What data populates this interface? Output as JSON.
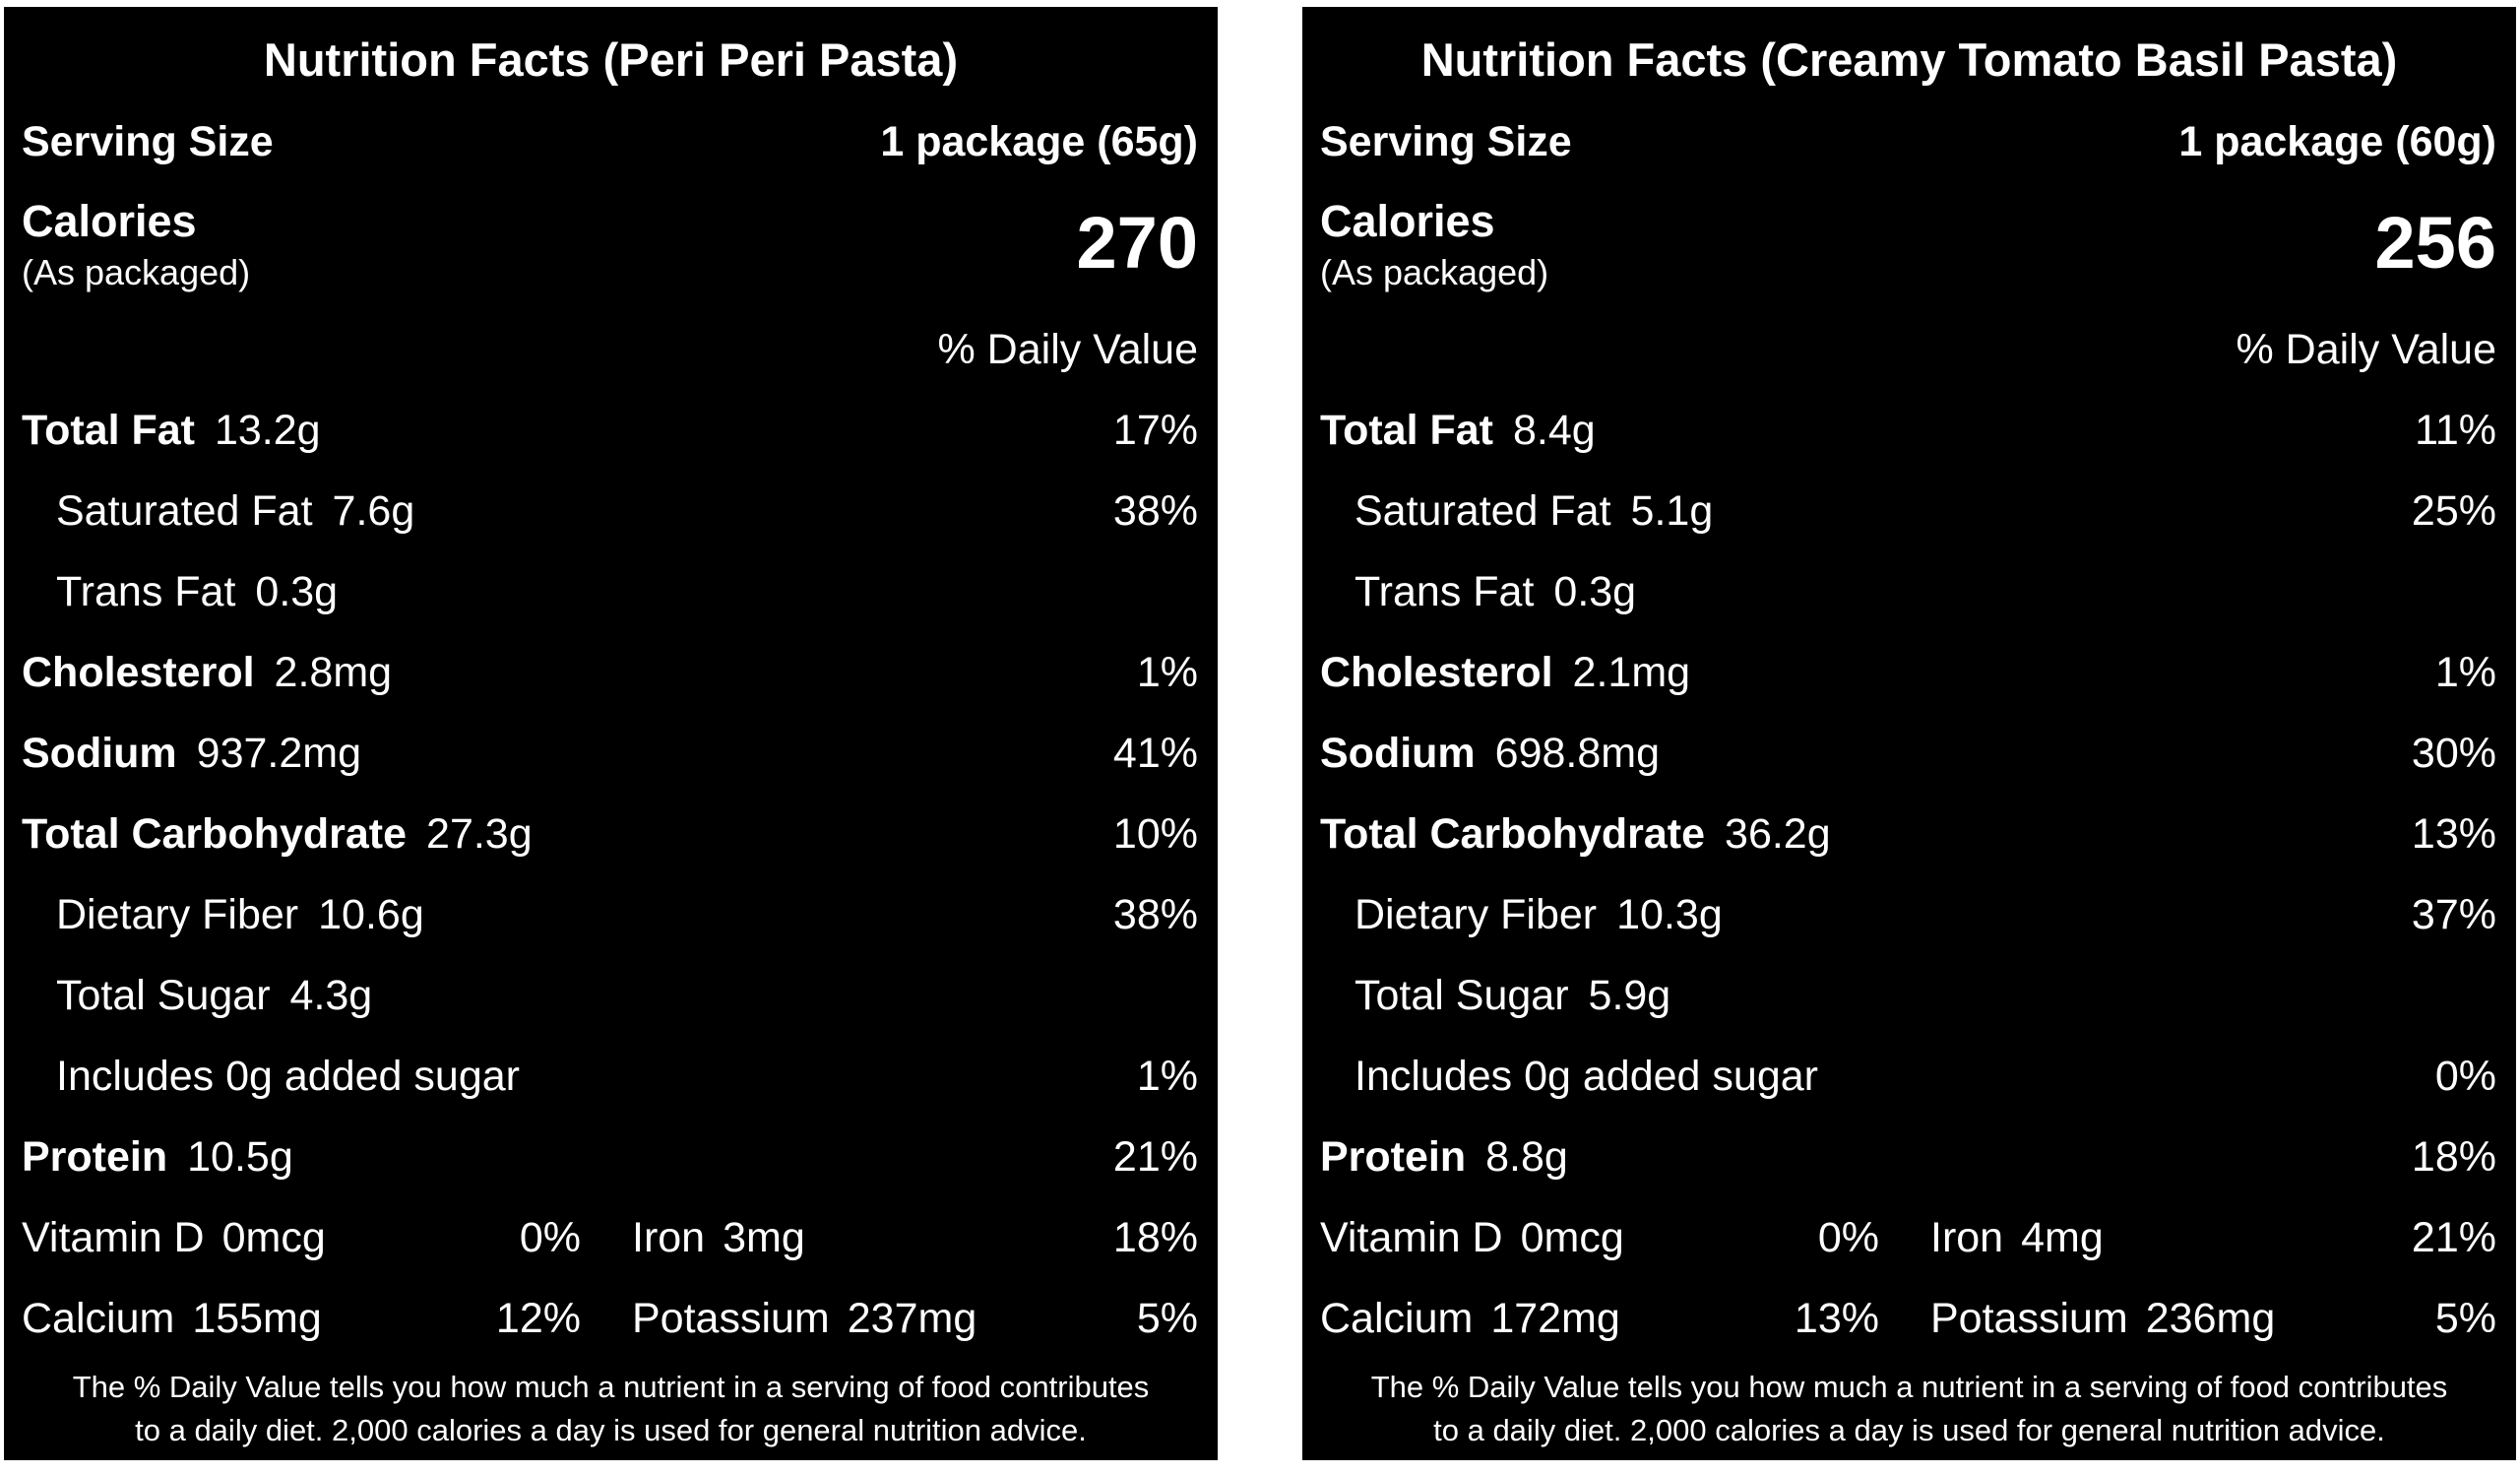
{
  "panels": [
    {
      "title": "Nutrition Facts (Peri Peri Pasta)",
      "serving_label": "Serving Size",
      "serving_value": "1 package (65g)",
      "calories_label": "Calories",
      "calories_sub": "(As packaged)",
      "calories_value": "270",
      "dv_header": "% Daily Value",
      "rows": [
        {
          "name": "Total Fat",
          "amount": "13.2g",
          "dv": "17%"
        },
        {
          "name": "Saturated Fat",
          "amount": "7.6g",
          "dv": "38%"
        },
        {
          "name": "Trans Fat",
          "amount": "0.3g",
          "dv": ""
        },
        {
          "name": "Cholesterol",
          "amount": "2.8mg",
          "dv": "1%"
        },
        {
          "name": "Sodium",
          "amount": "937.2mg",
          "dv": "41%"
        },
        {
          "name": "Total Carbohydrate",
          "amount": "27.3g",
          "dv": "10%"
        },
        {
          "name": "Dietary Fiber",
          "amount": "10.6g",
          "dv": "38%"
        },
        {
          "name": "Total Sugar",
          "amount": "4.3g",
          "dv": ""
        },
        {
          "name": "Includes 0g added sugar",
          "amount": "",
          "dv": "1%"
        },
        {
          "name": "Protein",
          "amount": "10.5g",
          "dv": "21%"
        }
      ],
      "vitamins": [
        {
          "name": "Vitamin D",
          "amount": "0mcg",
          "dv": "0%"
        },
        {
          "name": "Iron",
          "amount": "3mg",
          "dv": "18%"
        },
        {
          "name": "Calcium",
          "amount": "155mg",
          "dv": "12%"
        },
        {
          "name": "Potassium",
          "amount": "237mg",
          "dv": "5%"
        }
      ],
      "footnote_line1": "The % Daily Value tells you how much a nutrient in a serving of food contributes",
      "footnote_line2": "to a daily diet. 2,000 calories a day is used for general nutrition advice."
    },
    {
      "title": "Nutrition Facts (Creamy Tomato Basil Pasta)",
      "serving_label": "Serving Size",
      "serving_value": "1 package (60g)",
      "calories_label": "Calories",
      "calories_sub": "(As packaged)",
      "calories_value": "256",
      "dv_header": "% Daily Value",
      "rows": [
        {
          "name": "Total Fat",
          "amount": "8.4g",
          "dv": "11%"
        },
        {
          "name": "Saturated Fat",
          "amount": "5.1g",
          "dv": "25%"
        },
        {
          "name": "Trans Fat",
          "amount": "0.3g",
          "dv": ""
        },
        {
          "name": "Cholesterol",
          "amount": "2.1mg",
          "dv": "1%"
        },
        {
          "name": "Sodium",
          "amount": "698.8mg",
          "dv": "30%"
        },
        {
          "name": "Total Carbohydrate",
          "amount": "36.2g",
          "dv": "13%"
        },
        {
          "name": "Dietary Fiber",
          "amount": "10.3g",
          "dv": "37%"
        },
        {
          "name": "Total Sugar",
          "amount": "5.9g",
          "dv": ""
        },
        {
          "name": "Includes 0g added sugar",
          "amount": "",
          "dv": "0%"
        },
        {
          "name": "Protein",
          "amount": "8.8g",
          "dv": "18%"
        }
      ],
      "vitamins": [
        {
          "name": "Vitamin D",
          "amount": "0mcg",
          "dv": "0%"
        },
        {
          "name": "Iron",
          "amount": "4mg",
          "dv": "21%"
        },
        {
          "name": "Calcium",
          "amount": "172mg",
          "dv": "13%"
        },
        {
          "name": "Potassium",
          "amount": "236mg",
          "dv": "5%"
        }
      ],
      "footnote_line1": "The % Daily Value tells you how much a nutrient in a serving of food contributes",
      "footnote_line2": "to a daily diet. 2,000 calories a day is used for general nutrition advice."
    }
  ]
}
